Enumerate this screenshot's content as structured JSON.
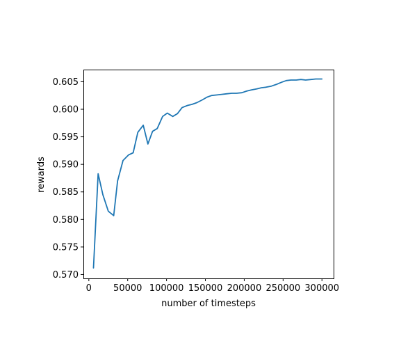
{
  "chart_data": {
    "type": "line",
    "title": "",
    "xlabel": "number of timesteps",
    "ylabel": "rewards",
    "xlim": [
      -7000,
      315000
    ],
    "ylim": [
      0.5693,
      0.6072
    ],
    "x_ticks": [
      0,
      50000,
      100000,
      150000,
      200000,
      250000,
      300000
    ],
    "x_tick_labels": [
      "0",
      "50000",
      "100000",
      "150000",
      "200000",
      "250000",
      "300000"
    ],
    "y_ticks": [
      0.57,
      0.575,
      0.58,
      0.585,
      0.59,
      0.595,
      0.6,
      0.605
    ],
    "y_tick_labels": [
      "0.570",
      "0.575",
      "0.580",
      "0.585",
      "0.590",
      "0.595",
      "0.600",
      "0.605"
    ],
    "grid": false,
    "legend": "none",
    "series_color": "#1f77b4",
    "series": [
      {
        "x": [
          6000,
          12000,
          18000,
          25000,
          32000,
          37000,
          44000,
          51000,
          57000,
          63000,
          70000,
          76000,
          82000,
          88000,
          95000,
          101000,
          108000,
          114000,
          120000,
          127000,
          133000,
          139000,
          146000,
          152000,
          158000,
          165000,
          171000,
          177000,
          184000,
          190000,
          197000,
          203000,
          209000,
          216000,
          222000,
          228000,
          235000,
          241000,
          248000,
          254000,
          260000,
          267000,
          273000,
          279000,
          286000,
          292000,
          300000
        ],
        "values": [
          0.5712,
          0.5883,
          0.5845,
          0.5815,
          0.5807,
          0.587,
          0.5907,
          0.5917,
          0.5921,
          0.5958,
          0.5971,
          0.5937,
          0.596,
          0.5965,
          0.5987,
          0.5993,
          0.5987,
          0.5992,
          0.6003,
          0.6007,
          0.6009,
          0.6012,
          0.6017,
          0.6022,
          0.6025,
          0.6026,
          0.6027,
          0.6028,
          0.6029,
          0.6029,
          0.603,
          0.6033,
          0.6035,
          0.6037,
          0.6039,
          0.604,
          0.6042,
          0.6045,
          0.6049,
          0.6052,
          0.6053,
          0.6053,
          0.6054,
          0.6053,
          0.6054,
          0.6055,
          0.6055
        ]
      }
    ]
  }
}
